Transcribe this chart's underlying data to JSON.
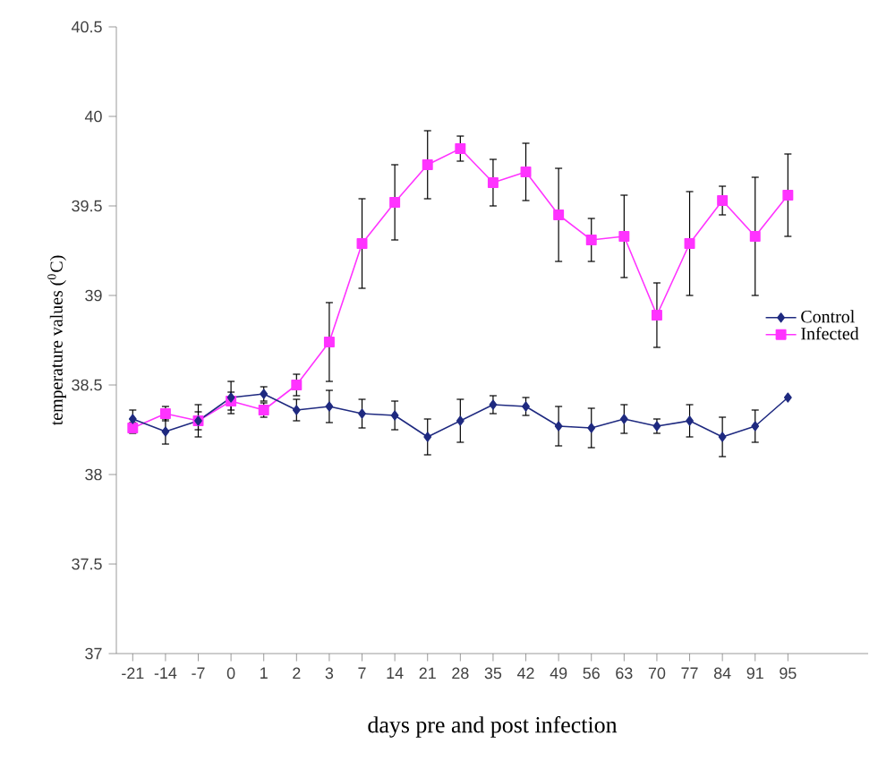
{
  "chart_data": {
    "type": "line",
    "xlabel": "days pre and post infection",
    "ylabel": "temperature values ($^{0}$C)",
    "categories": [
      "-21",
      "-14",
      "-7",
      "0",
      "1",
      "2",
      "3",
      "7",
      "14",
      "21",
      "28",
      "35",
      "42",
      "49",
      "56",
      "63",
      "70",
      "77",
      "84",
      "91",
      "95"
    ],
    "ylim": [
      37,
      40.5
    ],
    "yticks": [
      37,
      37.5,
      38,
      38.5,
      39,
      39.5,
      40,
      40.5
    ],
    "grid": false,
    "legend": "right",
    "line_style": "solid",
    "series": [
      {
        "name": "Control",
        "color": "#1f2a80",
        "marker": "diamond",
        "values": [
          38.31,
          38.24,
          38.3,
          38.43,
          38.45,
          38.36,
          38.38,
          38.34,
          38.33,
          38.21,
          38.3,
          38.39,
          38.38,
          38.27,
          38.26,
          38.31,
          38.27,
          38.3,
          38.21,
          38.27,
          38.43
        ],
        "errors": [
          0.05,
          0.07,
          0.09,
          0.09,
          0.04,
          0.06,
          0.09,
          0.08,
          0.08,
          0.1,
          0.12,
          0.05,
          0.05,
          0.11,
          0.11,
          0.08,
          0.04,
          0.09,
          0.11,
          0.09,
          null
        ]
      },
      {
        "name": "Infected",
        "color": "#ff33ff",
        "marker": "square",
        "values": [
          38.26,
          38.34,
          38.3,
          38.41,
          38.36,
          38.5,
          38.74,
          39.29,
          39.52,
          39.73,
          39.82,
          39.63,
          39.69,
          39.45,
          39.31,
          39.33,
          38.89,
          39.29,
          39.53,
          39.33,
          39.56
        ],
        "errors": [
          0.03,
          0.04,
          0.05,
          0.05,
          0.04,
          0.06,
          0.22,
          0.25,
          0.21,
          0.19,
          0.07,
          0.13,
          0.16,
          0.26,
          0.12,
          0.23,
          0.18,
          0.29,
          0.08,
          0.33,
          0.23
        ]
      }
    ]
  }
}
